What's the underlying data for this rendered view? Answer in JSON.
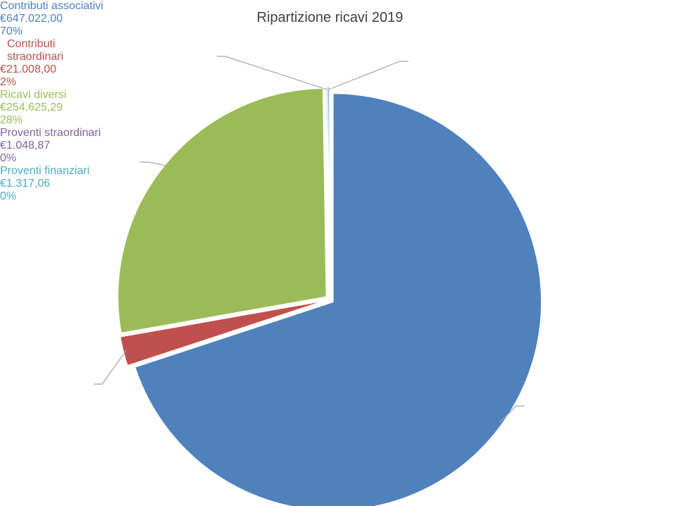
{
  "chart_data": {
    "type": "pie",
    "title": "Ripartizione ricavi 2019",
    "categories": [
      "Contributi associativi",
      "Contributi straordinari",
      "Ricavi diversi",
      "Proventi straordinari",
      "Proventi finanziari"
    ],
    "values": [
      647022.0,
      21008.0,
      254625.29,
      1048.87,
      1317.06
    ],
    "value_labels": [
      "€647.022,00",
      "€21.008,00",
      "€254.625,29",
      "€1.048,87",
      "€1.317,06"
    ],
    "percent_labels": [
      "70%",
      "2%",
      "28%",
      "0%",
      "0%"
    ],
    "colors": [
      "#4f81bd",
      "#c0504d",
      "#9bbb59",
      "#8064a2",
      "#4bacc6"
    ]
  }
}
